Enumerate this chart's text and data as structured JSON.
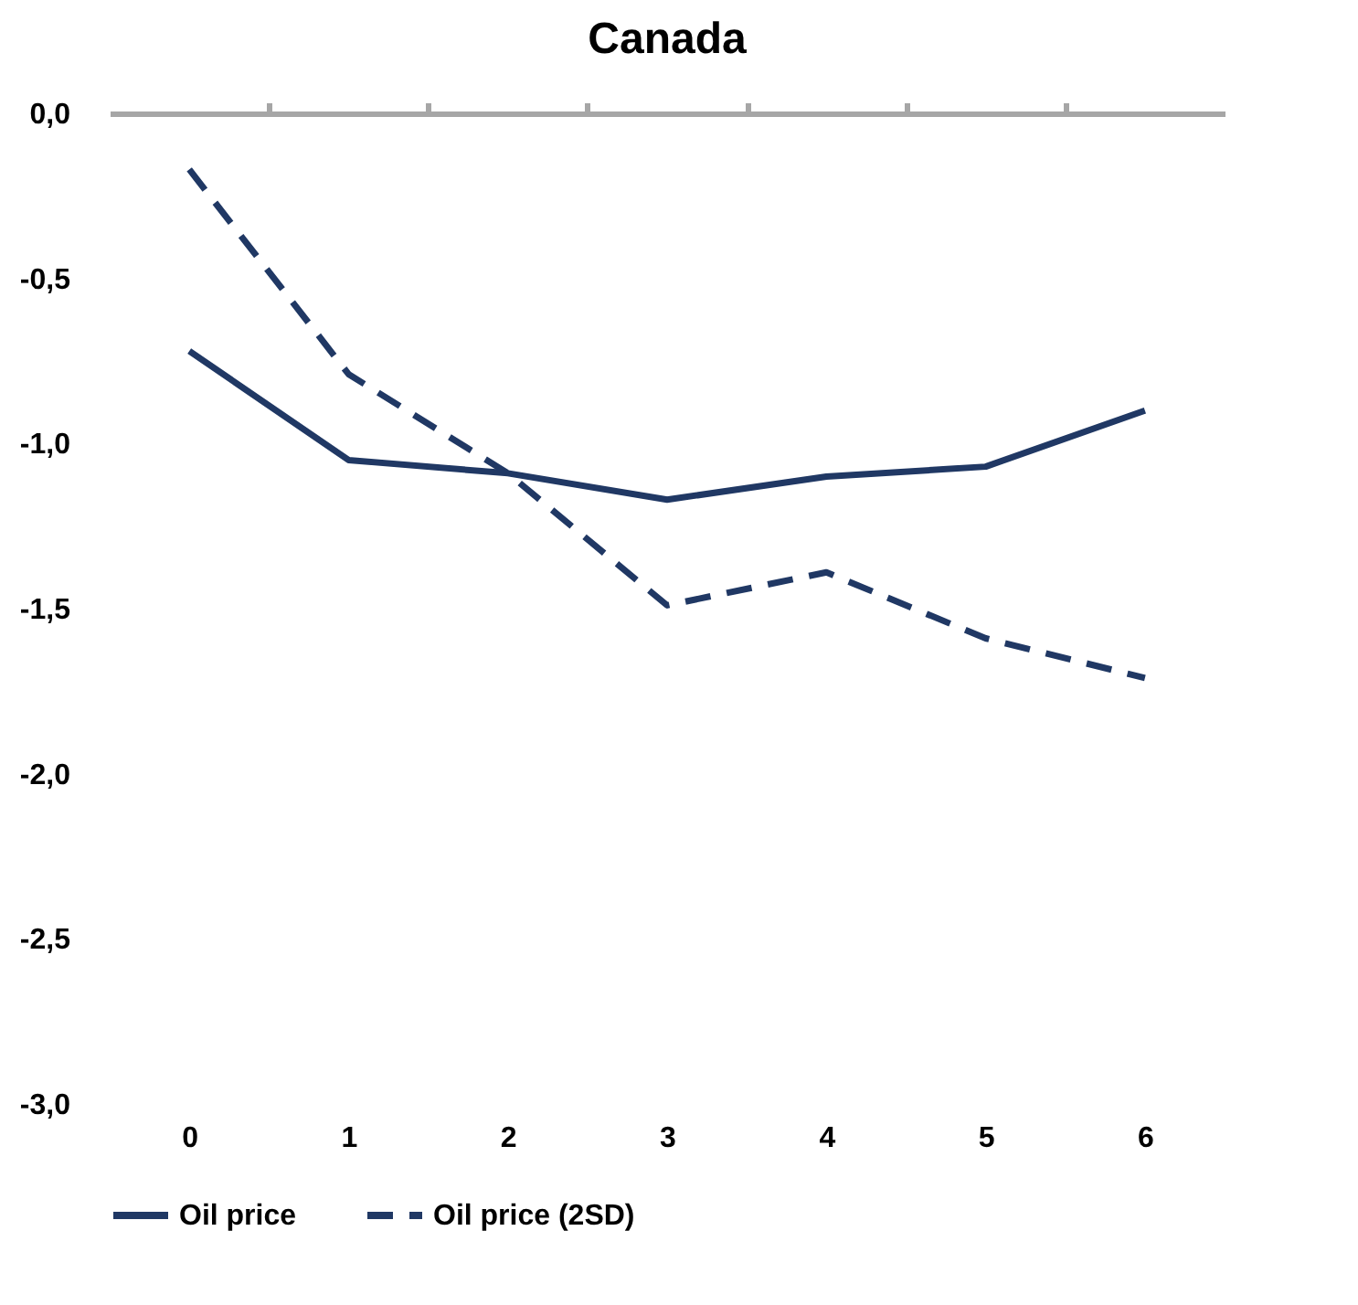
{
  "chart_data": {
    "type": "line",
    "title": "Canada",
    "categories": [
      "0",
      "1",
      "2",
      "3",
      "4",
      "5",
      "6"
    ],
    "series": [
      {
        "name": "Oil price",
        "color": "#203864",
        "line_style": "solid",
        "values": [
          -0.72,
          -1.05,
          -1.09,
          -1.17,
          -1.1,
          -1.07,
          -0.9
        ]
      },
      {
        "name": "Oil price (2SD)",
        "color": "#203864",
        "line_style": "dashed",
        "values": [
          -0.17,
          -0.79,
          -1.09,
          -1.49,
          -1.39,
          -1.59,
          -1.71
        ]
      }
    ],
    "ylim": [
      -3.0,
      0.0
    ],
    "yticks": [
      {
        "value": 0,
        "label": "0,0"
      },
      {
        "value": -0.5,
        "label": "-0,5"
      },
      {
        "value": -1.0,
        "label": "-1,0"
      },
      {
        "value": -1.5,
        "label": "-1,5"
      },
      {
        "value": -2.0,
        "label": "-2,0"
      },
      {
        "value": -2.5,
        "label": "-2,5"
      },
      {
        "value": -3.0,
        "label": "-3,0"
      }
    ],
    "grid": false,
    "legend": "bottom",
    "marker": "none"
  }
}
